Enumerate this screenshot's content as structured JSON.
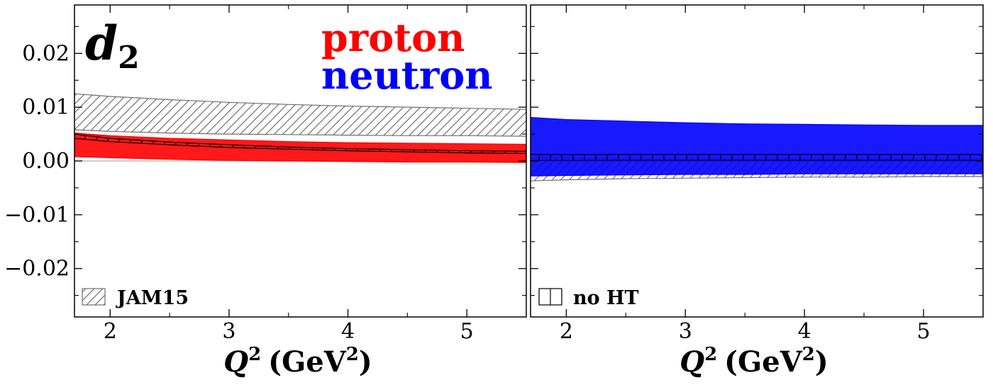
{
  "chart_data": [
    {
      "type": "area",
      "panel": "left",
      "title": "d",
      "title_subscript": "2",
      "labels": [
        {
          "text": "proton",
          "color": "#ff0000"
        },
        {
          "text": "neutron",
          "color": "#0000ff"
        }
      ],
      "xlabel": "Q",
      "xlabel_superscript": "2",
      "xlabel_unit": "(GeV",
      "xlabel_unit_sup": "2",
      "xlabel_unit_close": ")",
      "xlim": [
        1.7,
        5.5
      ],
      "ylim": [
        -0.029,
        0.029
      ],
      "xticks": [
        2,
        3,
        4,
        5
      ],
      "xtick_labels": [
        "2",
        "3",
        "4",
        "5"
      ],
      "yticks": [
        -0.02,
        -0.01,
        0.0,
        0.01,
        0.02
      ],
      "ytick_labels": [
        "−0.02",
        "−0.01",
        "0.00",
        "0.01",
        "0.02"
      ],
      "zero_line": true,
      "legend": {
        "label": "JAM15",
        "hatch": "diagonal",
        "placement": "lower-left"
      },
      "series": [
        {
          "name": "JAM15",
          "style": "hatch-diagonal",
          "color": "#707070",
          "x": [
            1.7,
            2.0,
            2.5,
            3.0,
            3.5,
            4.0,
            4.5,
            5.0,
            5.5
          ],
          "lower": [
            0.0058,
            0.0055,
            0.0052,
            0.005,
            0.0049,
            0.0048,
            0.0047,
            0.0047,
            0.0046
          ],
          "upper": [
            0.0125,
            0.012,
            0.0114,
            0.0109,
            0.0105,
            0.0102,
            0.01,
            0.0098,
            0.0096
          ]
        },
        {
          "name": "proton",
          "style": "solid",
          "color": "#ff0000",
          "x": [
            1.7,
            2.0,
            2.5,
            3.0,
            3.5,
            4.0,
            4.5,
            5.0,
            5.5
          ],
          "lower": [
            0.0008,
            0.0006,
            0.0003,
            0.0001,
            0.0,
            -0.0001,
            -0.0002,
            -0.0002,
            -0.0003
          ],
          "upper": [
            0.0052,
            0.0047,
            0.0042,
            0.0039,
            0.0036,
            0.0034,
            0.0033,
            0.0032,
            0.0031
          ]
        },
        {
          "name": "no HT",
          "style": "hatch-vertical",
          "color": "#000000",
          "x": [
            1.7,
            2.0,
            2.5,
            3.0,
            3.5,
            4.0,
            4.5,
            5.0,
            5.5
          ],
          "lower": [
            0.0042,
            0.0036,
            0.003,
            0.0025,
            0.0022,
            0.0019,
            0.0017,
            0.0015,
            0.0014
          ],
          "upper": [
            0.005,
            0.0042,
            0.0035,
            0.003,
            0.0026,
            0.0023,
            0.0021,
            0.0019,
            0.0018
          ]
        }
      ]
    },
    {
      "type": "area",
      "panel": "right",
      "xlabel": "Q",
      "xlabel_superscript": "2",
      "xlabel_unit": "(GeV",
      "xlabel_unit_sup": "2",
      "xlabel_unit_close": ")",
      "xlim": [
        1.7,
        5.5
      ],
      "ylim": [
        -0.029,
        0.029
      ],
      "xticks": [
        2,
        3,
        4,
        5
      ],
      "xtick_labels": [
        "2",
        "3",
        "4",
        "5"
      ],
      "yticks": [
        -0.02,
        -0.01,
        0.0,
        0.01,
        0.02
      ],
      "zero_line": true,
      "legend": {
        "label": "no HT",
        "hatch": "vertical",
        "placement": "lower-left"
      },
      "series": [
        {
          "name": "JAM15",
          "style": "hatch-diagonal",
          "color": "#707070",
          "x": [
            1.7,
            2.0,
            2.5,
            3.0,
            3.5,
            4.0,
            4.5,
            5.0,
            5.5
          ],
          "lower": [
            -0.0037,
            -0.0035,
            -0.0033,
            -0.0032,
            -0.0031,
            -0.003,
            -0.003,
            -0.0029,
            -0.0029
          ],
          "upper": [
            0.0005,
            0.0005,
            0.0004,
            0.0004,
            0.0004,
            0.0004,
            0.0004,
            0.0004,
            0.0004
          ]
        },
        {
          "name": "neutron",
          "style": "solid",
          "color": "#0000ff",
          "x": [
            1.7,
            2.0,
            2.5,
            3.0,
            3.5,
            4.0,
            4.5,
            5.0,
            5.5
          ],
          "lower": [
            -0.0028,
            -0.0027,
            -0.0026,
            -0.0025,
            -0.0025,
            -0.0024,
            -0.0024,
            -0.0024,
            -0.0024
          ],
          "upper": [
            0.0081,
            0.0077,
            0.0074,
            0.0071,
            0.0069,
            0.0068,
            0.0067,
            0.0066,
            0.0066
          ]
        },
        {
          "name": "no HT",
          "style": "hatch-vertical",
          "color": "#000000",
          "x": [
            1.7,
            2.0,
            2.5,
            3.0,
            3.5,
            4.0,
            4.5,
            5.0,
            5.5
          ],
          "lower": [
            0.0001,
            0.0001,
            0.0001,
            0.0001,
            0.0001,
            0.0001,
            0.0001,
            0.0001,
            0.0001
          ],
          "upper": [
            0.0012,
            0.0012,
            0.0012,
            0.0012,
            0.0012,
            0.0012,
            0.0012,
            0.0012,
            0.0012
          ]
        }
      ]
    }
  ]
}
